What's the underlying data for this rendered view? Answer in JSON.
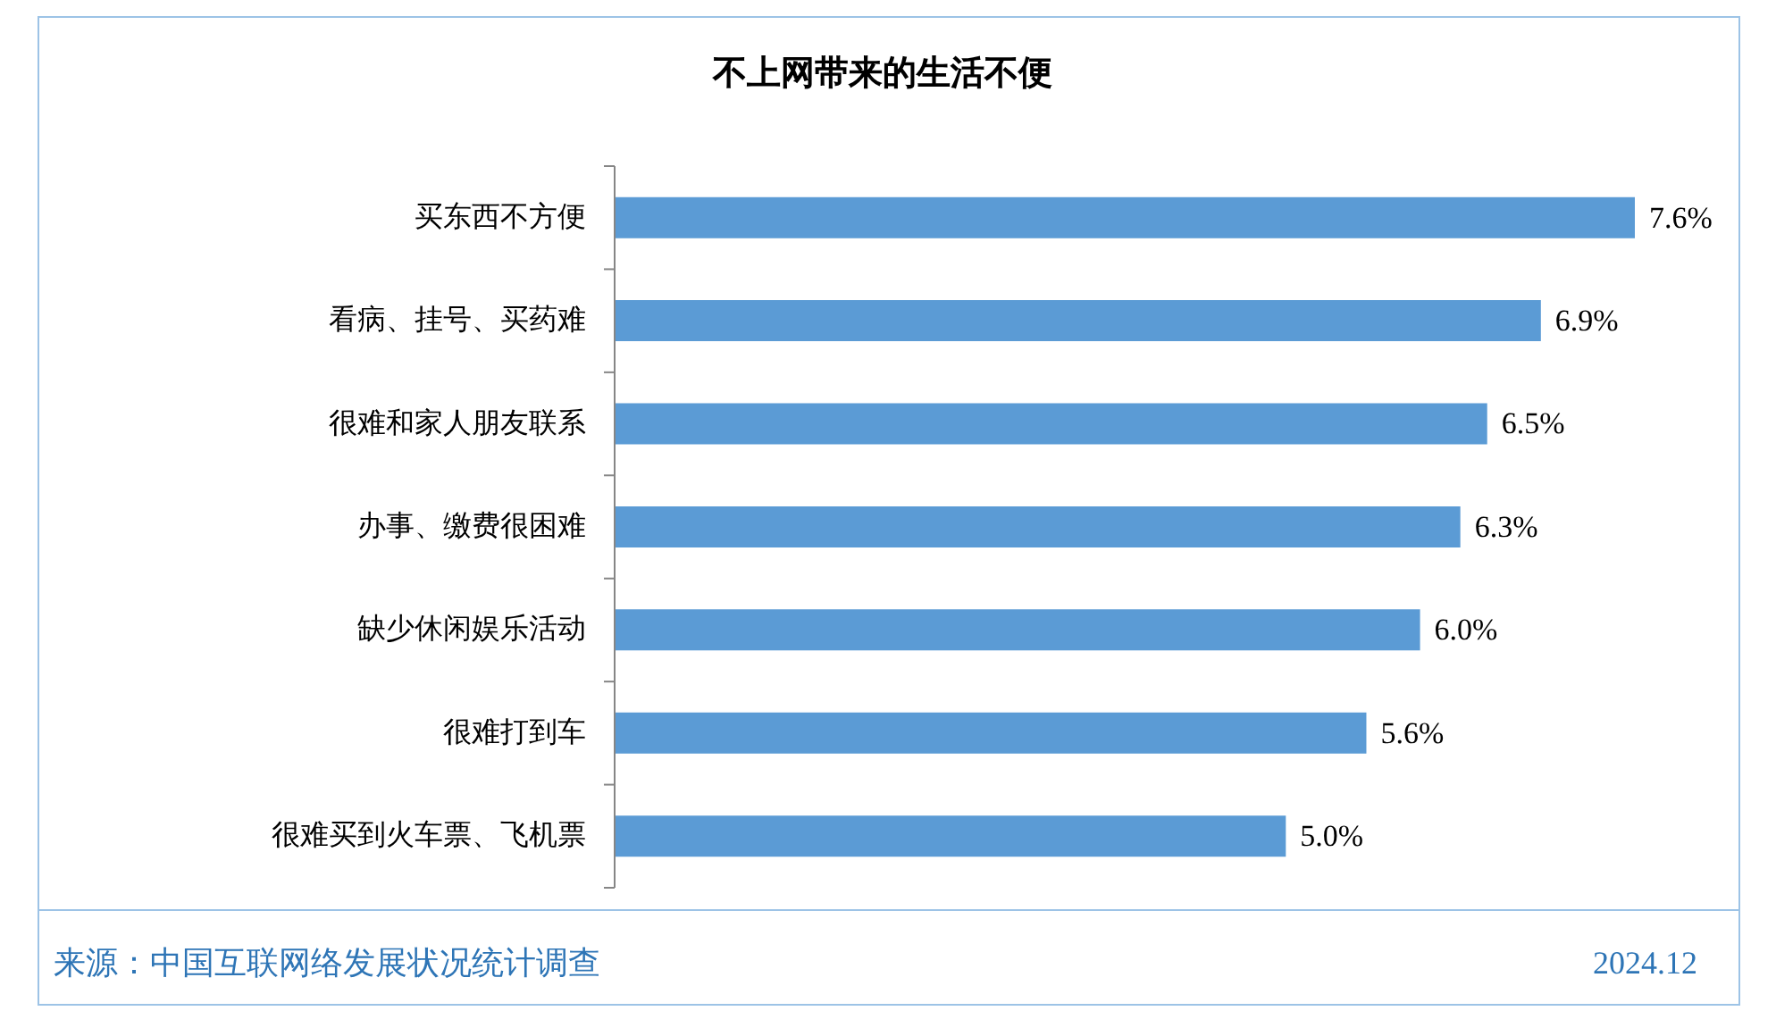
{
  "chart_data": {
    "type": "bar",
    "orientation": "horizontal",
    "title": "不上网带来的生活不便",
    "categories": [
      "买东西不方便",
      "看病、挂号、买药难",
      "很难和家人朋友联系",
      "办事、缴费很困难",
      "缺少休闲娱乐活动",
      "很难打到车",
      "很难买到火车票、飞机票"
    ],
    "values": [
      7.6,
      6.9,
      6.5,
      6.3,
      6.0,
      5.6,
      5.0
    ],
    "color": "#5b9bd5",
    "value_labels": [
      "7.6%",
      "6.9%",
      "6.5%",
      "6.3%",
      "6.0%",
      "5.6%",
      "5.0%"
    ],
    "tick_labels": "y",
    "annotations": [
      "来源：中国互联网络发展状况统计调查",
      "2024.12"
    ]
  }
}
